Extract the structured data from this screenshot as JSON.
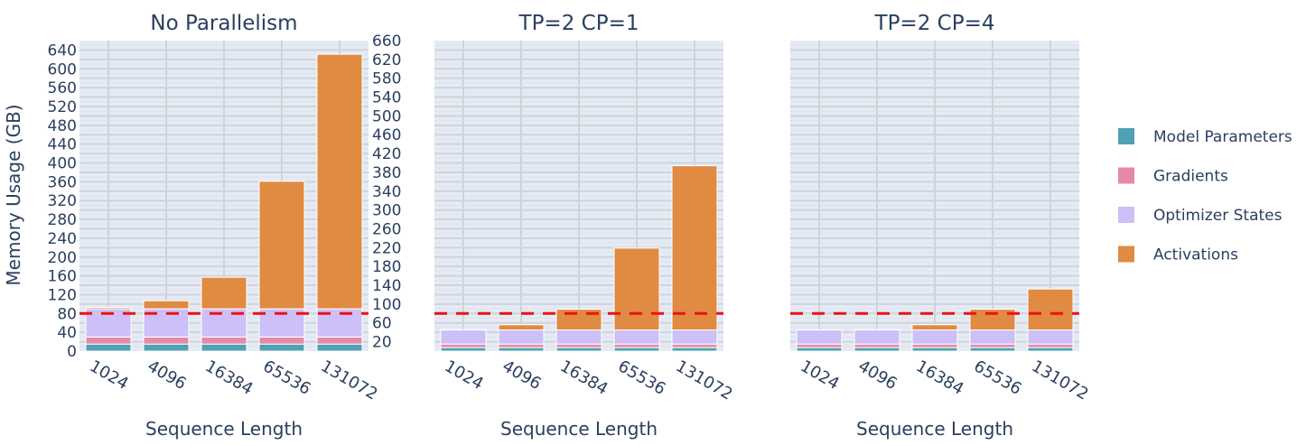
{
  "chart_data": {
    "type": "bar",
    "stacked": true,
    "ylabel": "Memory Usage (GB)",
    "ylim": [
      0,
      660
    ],
    "ytick_step": 20,
    "grid": true,
    "legend_placement": "right",
    "reference_line": {
      "y": 80,
      "style": "dashed",
      "color": "#ee1111"
    },
    "categories": [
      "1024",
      "4096",
      "16384",
      "65536",
      "131072"
    ],
    "series_names": [
      "Model Parameters",
      "Gradients",
      "Optimizer States",
      "Activations"
    ],
    "series_colors": [
      "#4fa1b3",
      "#e48aa8",
      "#cdbff7",
      "#e08a42"
    ],
    "subplots": [
      {
        "title": "No Parallelism",
        "xlabel": "Sequence Length",
        "series": [
          {
            "name": "Model Parameters",
            "values": [
              15,
              15,
              15,
              15,
              15
            ]
          },
          {
            "name": "Gradients",
            "values": [
              15,
              15,
              15,
              15,
              15
            ]
          },
          {
            "name": "Optimizer States",
            "values": [
              60,
              60,
              60,
              60,
              60
            ]
          },
          {
            "name": "Activations",
            "values": [
              3,
              17,
              67,
              271,
              541
            ]
          }
        ]
      },
      {
        "title": "TP=2 CP=1",
        "xlabel": "Sequence Length",
        "series": [
          {
            "name": "Model Parameters",
            "values": [
              7.5,
              7.5,
              7.5,
              7.5,
              7.5
            ]
          },
          {
            "name": "Gradients",
            "values": [
              7.5,
              7.5,
              7.5,
              7.5,
              7.5
            ]
          },
          {
            "name": "Optimizer States",
            "values": [
              30,
              30,
              30,
              30,
              30
            ]
          },
          {
            "name": "Activations",
            "values": [
              0.7,
              11,
              44,
              174,
              349
            ]
          }
        ]
      },
      {
        "title": "TP=2 CP=4",
        "xlabel": "Sequence Length",
        "series": [
          {
            "name": "Model Parameters",
            "values": [
              7.5,
              7.5,
              7.5,
              7.5,
              7.5
            ]
          },
          {
            "name": "Gradients",
            "values": [
              7.5,
              7.5,
              7.5,
              7.5,
              7.5
            ]
          },
          {
            "name": "Optimizer States",
            "values": [
              30,
              30,
              30,
              30,
              30
            ]
          },
          {
            "name": "Activations",
            "values": [
              0.2,
              0.7,
              11,
              44,
              87
            ]
          }
        ]
      }
    ]
  }
}
